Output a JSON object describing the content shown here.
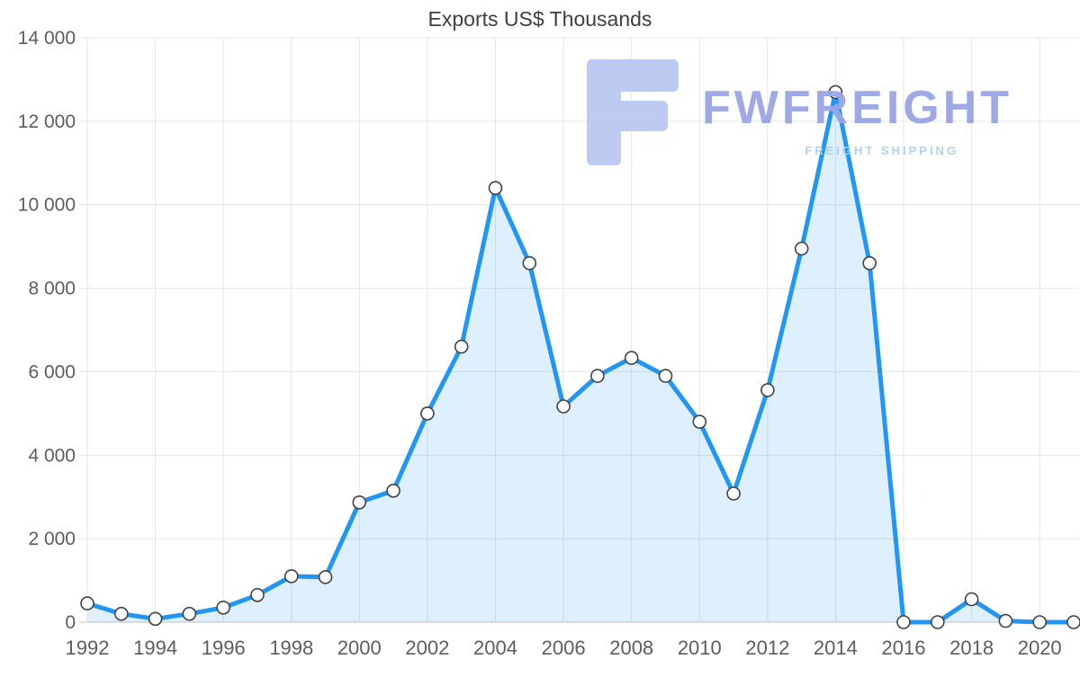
{
  "chart_data": {
    "type": "area",
    "title": "Exports US$ Thousands",
    "x": [
      1992,
      1993,
      1994,
      1995,
      1996,
      1997,
      1998,
      1999,
      2000,
      2001,
      2002,
      2003,
      2004,
      2005,
      2006,
      2007,
      2008,
      2009,
      2010,
      2011,
      2012,
      2013,
      2014,
      2015,
      2016,
      2017,
      2018,
      2019,
      2020,
      2021
    ],
    "values": [
      450,
      200,
      80,
      200,
      350,
      650,
      1100,
      1080,
      2870,
      3150,
      5000,
      6600,
      10400,
      8600,
      5170,
      5900,
      6330,
      5900,
      4800,
      3080,
      5560,
      8950,
      12700,
      8600,
      0,
      0,
      550,
      30,
      0,
      0
    ],
    "ylim": [
      0,
      14000
    ],
    "ytick_interval": 2000,
    "xticks": [
      1992,
      1994,
      1996,
      1998,
      2000,
      2002,
      2004,
      2006,
      2008,
      2010,
      2012,
      2014,
      2016,
      2018,
      2020
    ],
    "grid": true,
    "legend": "none",
    "xlabel": "",
    "ylabel": "",
    "fill_opacity": 0.15,
    "colors": {
      "line": "#2196f3",
      "marker_fill": "#ffffff",
      "marker_stroke": "#424242",
      "grid": "#e6e6e6",
      "axis": "#c4c4c4",
      "tick_text": "#5d5d5d",
      "title_text": "#3f3f3f"
    }
  },
  "watermark": {
    "brand": "FWFREIGHT",
    "tagline": "FREIGHT SHIPPING",
    "brand_color": "#99a5e5",
    "tagline_color": "#a5d2f3",
    "logo_color": "#bac8f1"
  }
}
